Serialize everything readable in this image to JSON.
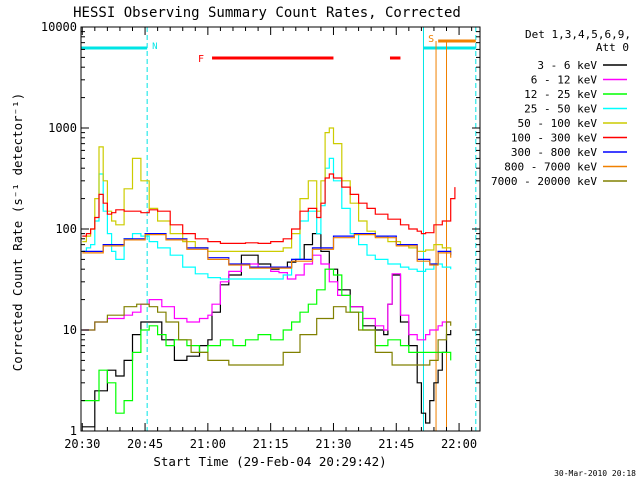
{
  "chart_data": {
    "type": "line",
    "title": "HESSI Observing Summary Count Rates, Corrected",
    "xlabel": "Start Time (29-Feb-04 20:29:42)",
    "ylabel": "Corrected Count Rate (s⁻¹ detector⁻¹)",
    "ylog": true,
    "xlim": [
      "20:29:42",
      "22:05:00"
    ],
    "ylim": [
      1,
      10000
    ],
    "x_ticks": [
      "20:30",
      "20:45",
      "21:00",
      "21:15",
      "21:30",
      "21:45",
      "22:00"
    ],
    "y_ticks": [
      "1",
      "10",
      "100",
      "1000",
      "10000"
    ],
    "legend_header": [
      "Det 1,3,4,5,6,9,",
      "Att 0"
    ],
    "legend_position": "right",
    "timestamp": "30-Mar-2010 20:18",
    "flags": {
      "N": {
        "label": "N",
        "color": "#00e5e5",
        "bars": [
          [
            "20:29:42",
            "20:45:30"
          ],
          [
            "21:51:30",
            "22:04:00"
          ]
        ],
        "dashed_lines": [
          "20:45:30",
          "22:04:00"
        ],
        "solid_lines": [
          "20:29:42",
          "21:51:30"
        ]
      },
      "F": {
        "label": "F",
        "color": "#ff0000",
        "bars": [
          [
            "21:01:00",
            "21:30:00"
          ],
          [
            "21:43:30",
            "21:46:00"
          ]
        ]
      },
      "S": {
        "label": "S",
        "color": "#f08000",
        "bars": [
          [
            "21:55:00",
            "22:04:00"
          ]
        ],
        "lines": [
          "21:54:30",
          "21:57:00"
        ]
      }
    },
    "series": [
      {
        "name": "3 - 6 keV",
        "color": "#000000",
        "t": [
          "20:30",
          "20:33",
          "20:36",
          "20:38",
          "20:40",
          "20:42",
          "20:44",
          "20:46",
          "20:49",
          "20:52",
          "20:55",
          "20:58",
          "21:00",
          "21:01",
          "21:03",
          "21:05",
          "21:08",
          "21:12",
          "21:15",
          "21:17",
          "21:19",
          "21:21",
          "21:23",
          "21:25",
          "21:27",
          "21:29",
          "21:31",
          "21:34",
          "21:37",
          "21:40",
          "21:42",
          "21:43",
          "21:44",
          "21:46",
          "21:48",
          "21:50",
          "21:51",
          "21:52",
          "21:53",
          "21:54",
          "21:55",
          "21:56",
          "21:57",
          "21:58"
        ],
        "v": [
          1.1,
          2.5,
          4,
          3.5,
          5,
          9,
          12,
          12,
          8,
          5,
          5.5,
          7,
          8,
          15,
          28,
          35,
          55,
          45,
          40,
          42,
          47,
          50,
          70,
          90,
          60,
          40,
          25,
          17,
          11,
          10,
          9,
          18,
          35,
          12,
          7,
          3,
          1.5,
          1.2,
          2,
          3,
          4,
          6,
          9,
          10
        ]
      },
      {
        "name": "6 - 12 keV",
        "color": "#ff00ff",
        "t": [
          "20:30",
          "20:33",
          "20:36",
          "20:38",
          "20:40",
          "20:42",
          "20:44",
          "20:46",
          "20:49",
          "20:52",
          "20:55",
          "20:58",
          "21:00",
          "21:01",
          "21:03",
          "21:05",
          "21:08",
          "21:12",
          "21:15",
          "21:17",
          "21:19",
          "21:21",
          "21:23",
          "21:25",
          "21:27",
          "21:29",
          "21:31",
          "21:34",
          "21:37",
          "21:40",
          "21:42",
          "21:43",
          "21:44",
          "21:46",
          "21:48",
          "21:50",
          "21:51",
          "21:52",
          "21:53",
          "21:54",
          "21:55",
          "21:56",
          "21:57",
          "21:58"
        ],
        "v": [
          10,
          12,
          13,
          13,
          14,
          15,
          18,
          20,
          17,
          13,
          12,
          13,
          14,
          18,
          30,
          38,
          45,
          42,
          38,
          37,
          32,
          35,
          45,
          55,
          45,
          30,
          22,
          17,
          13,
          11,
          10,
          18,
          36,
          14,
          9,
          8,
          8,
          9,
          10,
          10,
          11,
          12,
          12,
          12
        ]
      },
      {
        "name": "12 - 25 keV",
        "color": "#00ff00",
        "t": [
          "20:30",
          "20:32",
          "20:34",
          "20:36",
          "20:38",
          "20:40",
          "20:42",
          "20:44",
          "20:46",
          "20:48",
          "20:50",
          "20:52",
          "20:55",
          "20:58",
          "21:00",
          "21:03",
          "21:06",
          "21:09",
          "21:12",
          "21:15",
          "21:18",
          "21:20",
          "21:22",
          "21:24",
          "21:26",
          "21:28",
          "21:30",
          "21:32",
          "21:34",
          "21:37",
          "21:40",
          "21:43",
          "21:46",
          "21:48",
          "21:50",
          "21:52",
          "21:54",
          "21:56",
          "21:58"
        ],
        "v": [
          2,
          2,
          4,
          3,
          1.5,
          2,
          6,
          10,
          11,
          9,
          7,
          8,
          7,
          6,
          7,
          8,
          7,
          8,
          9,
          8,
          10,
          12,
          15,
          18,
          25,
          40,
          35,
          22,
          15,
          10,
          7,
          8,
          7,
          6,
          6,
          6,
          6,
          6,
          5
        ]
      },
      {
        "name": "25 - 50 keV",
        "color": "#00ffff",
        "t": [
          "20:30",
          "20:31",
          "20:32",
          "20:33",
          "20:34",
          "20:35",
          "20:36",
          "20:37",
          "20:38",
          "20:40",
          "20:42",
          "20:44",
          "20:46",
          "20:48",
          "20:51",
          "20:54",
          "20:57",
          "21:00",
          "21:03",
          "21:06",
          "21:09",
          "21:12",
          "21:15",
          "21:18",
          "21:20",
          "21:22",
          "21:24",
          "21:26",
          "21:27",
          "21:28",
          "21:29",
          "21:30",
          "21:32",
          "21:34",
          "21:36",
          "21:38",
          "21:40",
          "21:43",
          "21:46",
          "21:48",
          "21:50",
          "21:51",
          "21:52",
          "21:54",
          "21:56",
          "21:58"
        ],
        "v": [
          60,
          65,
          70,
          120,
          350,
          150,
          90,
          60,
          50,
          80,
          90,
          85,
          75,
          65,
          55,
          42,
          36,
          33,
          32,
          32,
          32,
          32,
          32,
          35,
          50,
          120,
          150,
          90,
          170,
          400,
          500,
          300,
          160,
          90,
          70,
          55,
          50,
          45,
          42,
          40,
          38,
          38,
          40,
          45,
          42,
          40
        ]
      },
      {
        "name": "50 - 100 keV",
        "color": "#cccc00",
        "t": [
          "20:30",
          "20:31",
          "20:32",
          "20:33",
          "20:34",
          "20:35",
          "20:36",
          "20:37",
          "20:38",
          "20:40",
          "20:42",
          "20:44",
          "20:46",
          "20:48",
          "20:51",
          "20:54",
          "20:57",
          "21:00",
          "21:03",
          "21:06",
          "21:09",
          "21:12",
          "21:15",
          "21:18",
          "21:20",
          "21:22",
          "21:24",
          "21:26",
          "21:27",
          "21:28",
          "21:29",
          "21:30",
          "21:32",
          "21:34",
          "21:36",
          "21:38",
          "21:40",
          "21:43",
          "21:46",
          "21:48",
          "21:50",
          "21:51",
          "21:52",
          "21:54",
          "21:56",
          "21:58"
        ],
        "v": [
          75,
          85,
          100,
          200,
          650,
          300,
          150,
          120,
          110,
          250,
          500,
          300,
          160,
          120,
          90,
          75,
          65,
          60,
          60,
          60,
          60,
          60,
          60,
          65,
          90,
          200,
          300,
          150,
          300,
          900,
          1000,
          700,
          300,
          180,
          120,
          95,
          85,
          75,
          70,
          65,
          60,
          60,
          62,
          70,
          65,
          60
        ]
      },
      {
        "name": "100 - 300 keV",
        "color": "#ff0000",
        "t": [
          "20:30",
          "20:31",
          "20:32",
          "20:33",
          "20:34",
          "20:35",
          "20:36",
          "20:37",
          "20:38",
          "20:40",
          "20:42",
          "20:44",
          "20:46",
          "20:48",
          "20:51",
          "20:54",
          "20:57",
          "21:00",
          "21:03",
          "21:06",
          "21:09",
          "21:12",
          "21:15",
          "21:18",
          "21:20",
          "21:22",
          "21:24",
          "21:26",
          "21:27",
          "21:28",
          "21:29",
          "21:30",
          "21:32",
          "21:34",
          "21:36",
          "21:38",
          "21:40",
          "21:43",
          "21:46",
          "21:48",
          "21:50",
          "21:51",
          "21:52",
          "21:54",
          "21:56",
          "21:58",
          "21:59"
        ],
        "v": [
          85,
          90,
          100,
          130,
          220,
          180,
          140,
          145,
          155,
          150,
          150,
          145,
          155,
          150,
          110,
          90,
          80,
          75,
          72,
          72,
          73,
          72,
          75,
          80,
          100,
          150,
          160,
          130,
          180,
          320,
          350,
          320,
          260,
          220,
          180,
          160,
          140,
          125,
          110,
          100,
          95,
          90,
          92,
          110,
          120,
          200,
          260
        ]
      },
      {
        "name": "300 - 800 keV",
        "color": "#0000ff",
        "t": [
          "20:30",
          "20:35",
          "20:40",
          "20:45",
          "20:50",
          "20:55",
          "21:00",
          "21:05",
          "21:10",
          "21:15",
          "21:20",
          "21:25",
          "21:30",
          "21:35",
          "21:40",
          "21:45",
          "21:50",
          "21:53",
          "21:55",
          "21:58"
        ],
        "v": [
          60,
          70,
          80,
          90,
          80,
          65,
          52,
          45,
          42,
          42,
          50,
          65,
          85,
          90,
          85,
          70,
          50,
          45,
          60,
          55
        ]
      },
      {
        "name": "800 - 7000 keV",
        "color": "#f08000",
        "t": [
          "20:30",
          "20:35",
          "20:40",
          "20:45",
          "20:50",
          "20:55",
          "21:00",
          "21:05",
          "21:10",
          "21:15",
          "21:20",
          "21:25",
          "21:30",
          "21:35",
          "21:40",
          "21:45",
          "21:50",
          "21:53",
          "21:55",
          "21:58"
        ],
        "v": [
          58,
          68,
          78,
          88,
          78,
          63,
          50,
          44,
          41,
          41,
          48,
          63,
          82,
          88,
          82,
          68,
          48,
          44,
          58,
          52
        ]
      },
      {
        "name": "7000 - 20000 keV",
        "color": "#808000",
        "t": [
          "20:30",
          "20:33",
          "20:36",
          "20:40",
          "20:43",
          "20:46",
          "20:48",
          "20:50",
          "20:53",
          "20:56",
          "21:00",
          "21:05",
          "21:10",
          "21:15",
          "21:18",
          "21:22",
          "21:26",
          "21:30",
          "21:33",
          "21:36",
          "21:40",
          "21:44",
          "21:48",
          "21:51",
          "21:53",
          "21:55",
          "21:57",
          "21:58"
        ],
        "v": [
          10,
          12,
          14,
          17,
          18,
          17,
          15,
          12,
          8,
          6,
          5,
          4.5,
          4.5,
          4.5,
          6,
          9,
          13,
          17,
          15,
          10,
          6,
          4.5,
          4.5,
          4.5,
          5,
          8,
          12,
          11
        ]
      }
    ]
  }
}
